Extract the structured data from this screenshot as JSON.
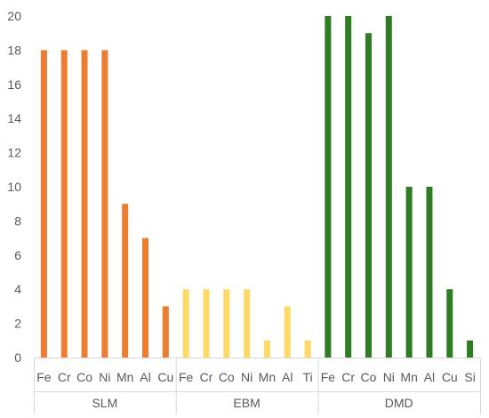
{
  "chart_data": {
    "type": "bar",
    "title": "",
    "xlabel": "",
    "ylabel": "",
    "ylim": [
      0,
      20
    ],
    "yticks": [
      0,
      2,
      4,
      6,
      8,
      10,
      12,
      14,
      16,
      18,
      20
    ],
    "grid": false,
    "legend": "none",
    "groups": [
      {
        "name": "SLM",
        "color": "#ED7D31",
        "categories": [
          "Fe",
          "Cr",
          "Co",
          "Ni",
          "Mn",
          "Al",
          "Cu"
        ],
        "values": [
          18,
          18,
          18,
          18,
          9,
          7,
          3
        ]
      },
      {
        "name": "EBM",
        "color": "#FFD966",
        "categories": [
          "Fe",
          "Cr",
          "Co",
          "Ni",
          "Mn",
          "Al",
          "Ti"
        ],
        "values": [
          4,
          4,
          4,
          4,
          1,
          3,
          1
        ]
      },
      {
        "name": "DMD",
        "color": "#2E7D23",
        "categories": [
          "Fe",
          "Cr",
          "Co",
          "Ni",
          "Mn",
          "Al",
          "Cu",
          "Si"
        ],
        "values": [
          20,
          20,
          19,
          20,
          10,
          10,
          4,
          1
        ]
      }
    ]
  }
}
